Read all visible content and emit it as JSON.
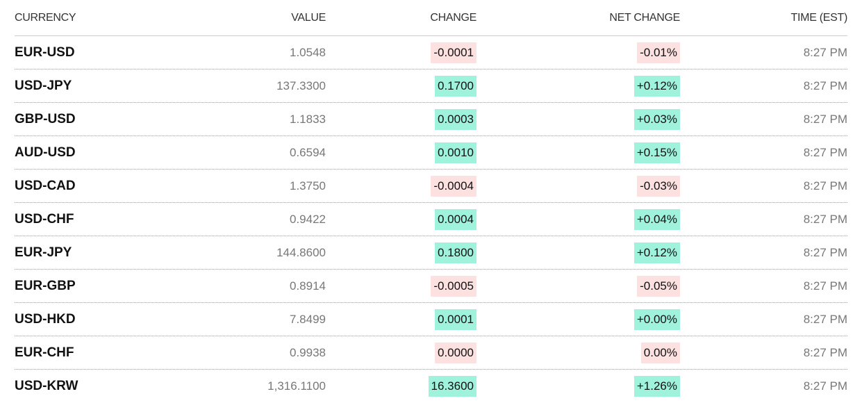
{
  "table": {
    "header": [
      "CURRENCY",
      "VALUE",
      "CHANGE",
      "NET CHANGE",
      "TIME (EST)"
    ],
    "highlight_colors": {
      "positive": "#9ff3dc",
      "negative": "#fde1e1"
    },
    "rows": [
      [
        "EUR-USD",
        "1.0548",
        "-0.0001",
        "-0.01%",
        "8:27 PM"
      ],
      [
        "USD-JPY",
        "137.3300",
        "0.1700",
        "+0.12%",
        "8:27 PM"
      ],
      [
        "GBP-USD",
        "1.1833",
        "0.0003",
        "+0.03%",
        "8:27 PM"
      ],
      [
        "AUD-USD",
        "0.6594",
        "0.0010",
        "+0.15%",
        "8:27 PM"
      ],
      [
        "USD-CAD",
        "1.3750",
        "-0.0004",
        "-0.03%",
        "8:27 PM"
      ],
      [
        "USD-CHF",
        "0.9422",
        "0.0004",
        "+0.04%",
        "8:27 PM"
      ],
      [
        "EUR-JPY",
        "144.8600",
        "0.1800",
        "+0.12%",
        "8:27 PM"
      ],
      [
        "EUR-GBP",
        "0.8914",
        "-0.0005",
        "-0.05%",
        "8:27 PM"
      ],
      [
        "USD-HKD",
        "7.8499",
        "0.0001",
        "+0.00%",
        "8:27 PM"
      ],
      [
        "EUR-CHF",
        "0.9938",
        "0.0000",
        "0.00%",
        "8:27 PM"
      ],
      [
        "USD-KRW",
        "1,316.1100",
        "16.3600",
        "+1.26%",
        "8:27 PM"
      ]
    ]
  }
}
